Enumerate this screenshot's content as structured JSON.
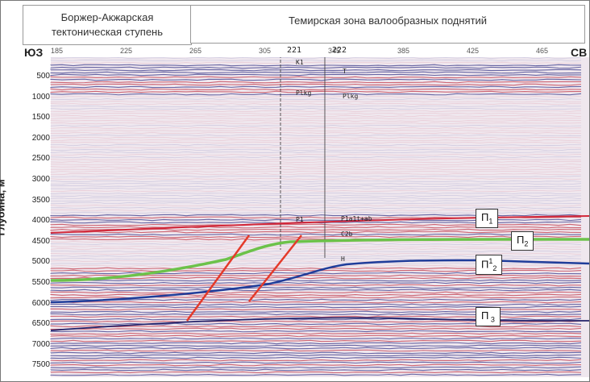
{
  "header": {
    "left_line1": "Боржер-Акжарская",
    "left_line2": "тектоническая ступень",
    "right": "Темирская зона валообразных поднятий"
  },
  "corners": {
    "sw": "ЮЗ",
    "ne": "СВ"
  },
  "y_axis_label": "Глубина, м",
  "depth_ticks": [
    "500",
    "1000",
    "1500",
    "2000",
    "2500",
    "3000",
    "3500",
    "4000",
    "4500",
    "5000",
    "5500",
    "6000",
    "6500",
    "7000",
    "7500"
  ],
  "trace_ticks": [
    "185",
    "225",
    "265",
    "305",
    "345",
    "385",
    "425",
    "465"
  ],
  "wells": [
    "221",
    "222"
  ],
  "horizon_tags": {
    "p1": {
      "base": "П",
      "sub": "1"
    },
    "p2": {
      "base": "П",
      "sub": "2"
    },
    "p12": {
      "base": "П",
      "sup": "1",
      "sub": "2"
    },
    "p3": {
      "base": "П",
      "sub": " 3"
    }
  },
  "small_labels": [
    "K1",
    "T",
    "Plkg",
    "P1",
    "P1a1t+ab",
    "C2b",
    "H",
    "Plkg"
  ],
  "colors": {
    "green_horizon": "#6cc24a",
    "blue_horizon": "#1f3d9a",
    "faults": "#e43a2a"
  }
}
